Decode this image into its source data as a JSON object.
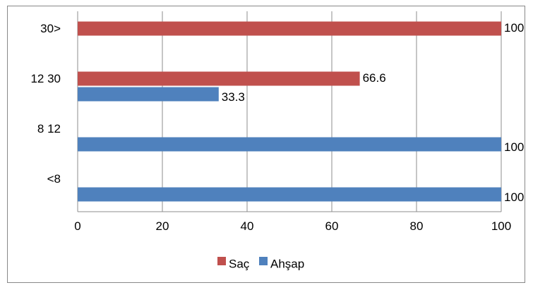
{
  "chart_data": {
    "type": "bar",
    "orientation": "horizontal",
    "categories": [
      "<8",
      "8 12",
      "12 30",
      "30>"
    ],
    "series": [
      {
        "name": "Ahşap",
        "color": "#4F81BD",
        "values": [
          100,
          100,
          33.3,
          null
        ]
      },
      {
        "name": "Saç",
        "color": "#C0504D",
        "values": [
          null,
          null,
          66.6,
          100
        ]
      }
    ],
    "data_labels": [
      {
        "series": "Ahşap",
        "category": "<8",
        "text": "100"
      },
      {
        "series": "Ahşap",
        "category": "8 12",
        "text": "100"
      },
      {
        "series": "Ahşap",
        "category": "12 30",
        "text": "33.3"
      },
      {
        "series": "Saç",
        "category": "12 30",
        "text": "66.6"
      },
      {
        "series": "Saç",
        "category": "30>",
        "text": "100"
      }
    ],
    "x_ticks": [
      "0",
      "20",
      "40",
      "60",
      "80",
      "100"
    ],
    "xlim": [
      0,
      100
    ],
    "grid": "vertical",
    "legend": {
      "placement": "bottom",
      "order": [
        "Saç",
        "Ahşap"
      ]
    },
    "title": "",
    "xlabel": "",
    "ylabel": ""
  }
}
